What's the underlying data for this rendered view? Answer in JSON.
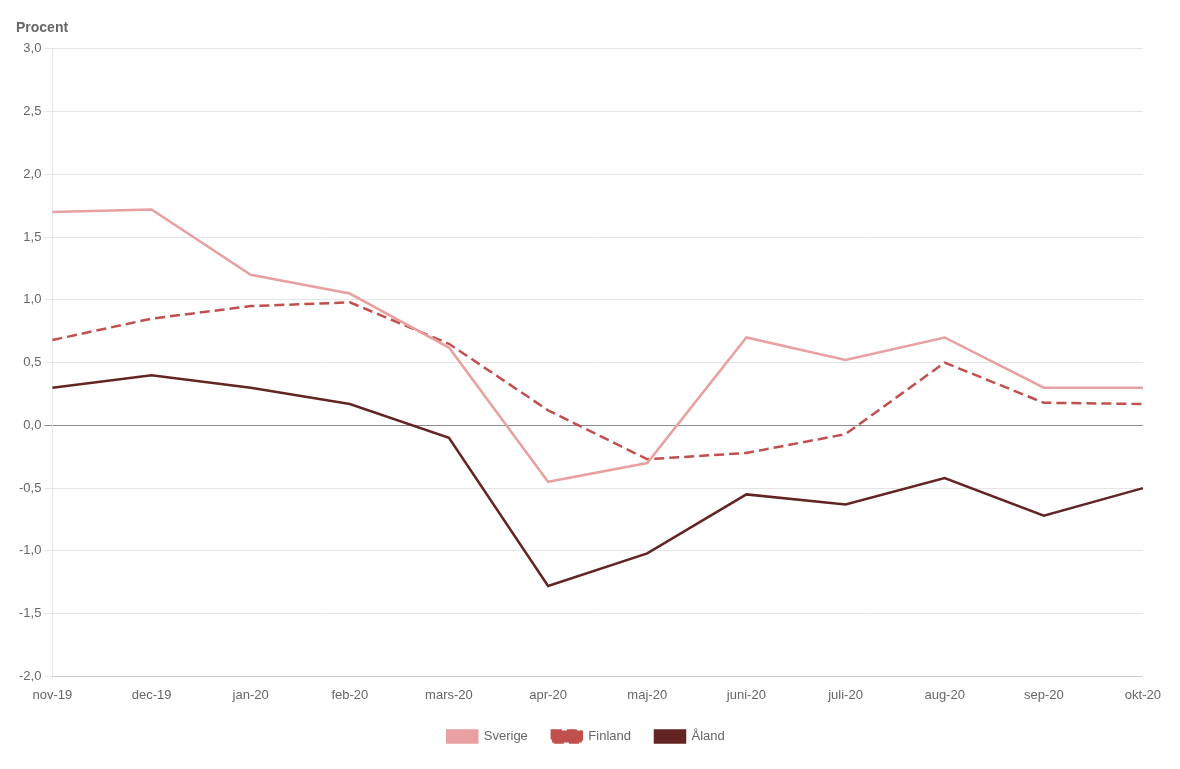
{
  "chart_data": {
    "type": "line",
    "y_label": "Procent",
    "categories": [
      "nov-19",
      "dec-19",
      "jan-20",
      "feb-20",
      "mars-20",
      "apr-20",
      "maj-20",
      "juni-20",
      "juli-20",
      "aug-20",
      "sep-20",
      "okt-20"
    ],
    "series": [
      {
        "name": "Sverige",
        "color": "#e8a0a0",
        "line_style": "solid",
        "values": [
          1.7,
          1.72,
          1.2,
          1.05,
          0.62,
          -0.45,
          -0.3,
          0.7,
          0.52,
          0.7,
          0.3,
          0.3
        ]
      },
      {
        "name": "Finland",
        "color": "#c0504d",
        "line_style": "dashed",
        "values": [
          0.68,
          0.85,
          0.95,
          0.98,
          0.65,
          0.12,
          -0.27,
          -0.22,
          -0.07,
          0.5,
          0.18,
          0.17
        ]
      },
      {
        "name": "Åland",
        "color": "#632523",
        "line_style": "solid",
        "values": [
          0.3,
          0.4,
          0.3,
          0.17,
          -0.1,
          -1.28,
          -1.02,
          -0.55,
          -0.63,
          -0.42,
          -0.72,
          -0.5
        ]
      }
    ],
    "ylim": [
      -2.0,
      3.0
    ],
    "yticks": [
      {
        "value": -2.0,
        "label": "-2,0"
      },
      {
        "value": -1.5,
        "label": "-1,5"
      },
      {
        "value": -1.0,
        "label": "-1,0"
      },
      {
        "value": -0.5,
        "label": "-0,5"
      },
      {
        "value": 0.0,
        "label": "0,0"
      },
      {
        "value": 0.5,
        "label": "0,5"
      },
      {
        "value": 1.0,
        "label": "1,0"
      },
      {
        "value": 1.5,
        "label": "1,5"
      },
      {
        "value": 2.0,
        "label": "2,0"
      },
      {
        "value": 2.5,
        "label": "2,5"
      },
      {
        "value": 3.0,
        "label": "3,0"
      }
    ],
    "grid": true,
    "legend": "bottom"
  }
}
